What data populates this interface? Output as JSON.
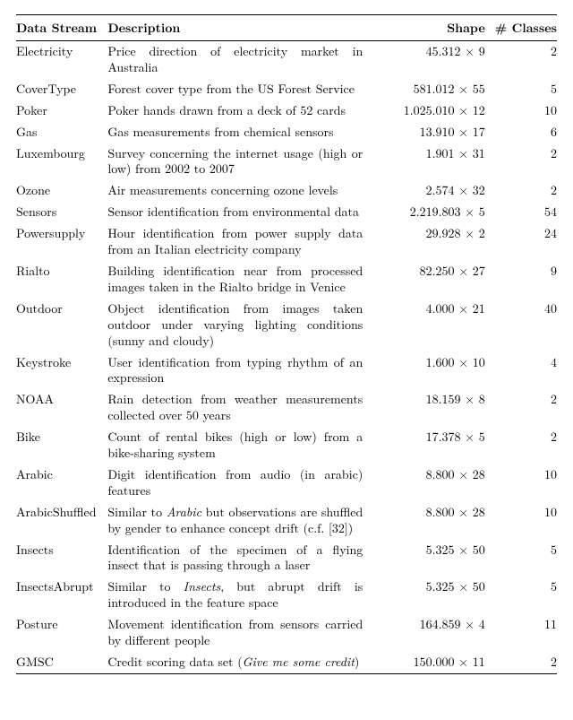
{
  "table": {
    "headers": {
      "name": "Data Stream",
      "desc": "Description",
      "shape": "Shape",
      "classes": "# Classes"
    },
    "rows": [
      {
        "name": "Electricity",
        "desc": "Price direction of electricity market in Australia",
        "shape": "45.312 × 9",
        "classes": "2"
      },
      {
        "name": "CoverType",
        "desc": "Forest cover type from the US Forest Service",
        "shape": "581.012 × 55",
        "classes": "5"
      },
      {
        "name": "Poker",
        "desc": "Poker hands drawn from a deck of 52 cards",
        "shape": "1.025.010 × 12",
        "classes": "10"
      },
      {
        "name": "Gas",
        "desc": "Gas measurements from chemical sensors",
        "shape": "13.910 × 17",
        "classes": "6"
      },
      {
        "name": "Luxembourg",
        "desc": "Survey concerning the internet usage (high or low) from 2002 to 2007",
        "shape": "1.901 × 31",
        "classes": "2"
      },
      {
        "name": "Ozone",
        "desc": "Air measurements concerning ozone levels",
        "shape": "2.574 × 32",
        "classes": "2"
      },
      {
        "name": "Sensors",
        "desc": "Sensor identification from environmental data",
        "shape": "2.219.803 × 5",
        "classes": "54"
      },
      {
        "name": "Powersupply",
        "desc": "Hour identification from power supply data from an Italian electricity company",
        "shape": "29.928 × 2",
        "classes": "24"
      },
      {
        "name": "Rialto",
        "desc": "Building identification near from processed images taken in the Rialto bridge in Venice",
        "shape": "82.250 × 27",
        "classes": "9"
      },
      {
        "name": "Outdoor",
        "desc": "Object identification from images taken outdoor under varying lighting conditions (sunny and cloudy)",
        "shape": "4.000 × 21",
        "classes": "40"
      },
      {
        "name": "Keystroke",
        "desc": "User identification from typing rhythm of an expression",
        "shape": "1.600 × 10",
        "classes": "4"
      },
      {
        "name": "NOAA",
        "desc": "Rain detection from weather measurements collected over 50 years",
        "shape": "18.159 × 8",
        "classes": "2"
      },
      {
        "name": "Bike",
        "desc": "Count of rental bikes (high or low) from a bike-sharing system",
        "shape": "17.378 × 5",
        "classes": "2"
      },
      {
        "name": "Arabic",
        "desc": "Digit identification from audio (in arabic) features",
        "shape": "8.800 × 28",
        "classes": "10"
      },
      {
        "name": "ArabicShuffled",
        "desc_html": "Similar to <span class=\"ital\">Arabic</span> but observations are shuffled by gender to enhance concept drift (c.f. [32])",
        "shape": "8.800 × 28",
        "classes": "10"
      },
      {
        "name": "Insects",
        "desc": "Identification of the specimen of a flying insect that is passing through a laser",
        "shape": "5.325 × 50",
        "classes": "5"
      },
      {
        "name": "InsectsAbrupt",
        "desc_html": "Similar to <span class=\"ital\">Insects</span>, but abrupt drift is introduced in the feature space",
        "shape": "5.325 × 50",
        "classes": "5"
      },
      {
        "name": "Posture",
        "desc": "Movement identification from sensors carried by different people",
        "shape": "164.859 × 4",
        "classes": "11"
      },
      {
        "name": "GMSC",
        "desc_html": "Credit scoring data set (<span class=\"ital\">Give me some credit</span>)",
        "shape": "150.000 × 11",
        "classes": "2"
      }
    ]
  }
}
